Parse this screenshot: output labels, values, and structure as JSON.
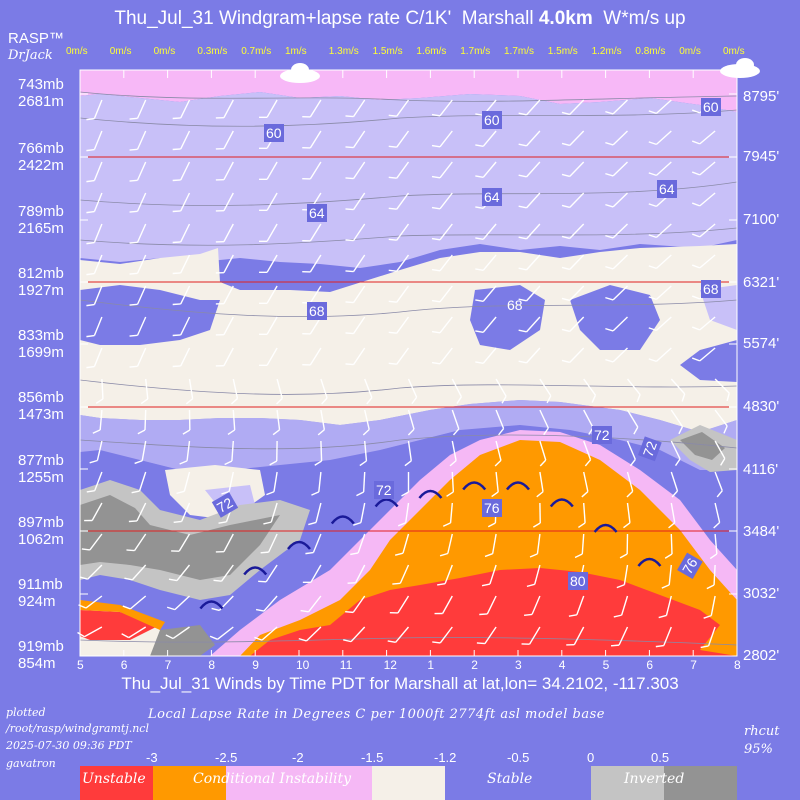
{
  "header": {
    "title_prefix": "Thu_Jul_31 Windgram+lapse rate C/1K'  Marshall ",
    "title_bold": "4.0km",
    "title_suffix": "  W*m/s up",
    "brand": "RASP™",
    "brand_author": "DrJack"
  },
  "left_axis": [
    {
      "mb": "743mb",
      "m": "2681m"
    },
    {
      "mb": "766mb",
      "m": "2422m"
    },
    {
      "mb": "789mb",
      "m": "2165m"
    },
    {
      "mb": "812mb",
      "m": "1927m"
    },
    {
      "mb": "833mb",
      "m": "1699m"
    },
    {
      "mb": "856mb",
      "m": "1473m"
    },
    {
      "mb": "877mb",
      "m": "1255m"
    },
    {
      "mb": "897mb",
      "m": "1062m"
    },
    {
      "mb": "911mb",
      "m": "924m"
    },
    {
      "mb": "919mb",
      "m": "854m"
    }
  ],
  "right_axis": [
    "8795'",
    "7945'",
    "7100'",
    "6321'",
    "5574'",
    "4830'",
    "4116'",
    "3484'",
    "3032'",
    "2802'"
  ],
  "wstar_labels": [
    "0m/s",
    "0m/s",
    "0m/s",
    "0.3m/s",
    "0.7m/s",
    "1m/s",
    "1.3m/s",
    "1.5m/s",
    "1.6m/s",
    "1.7m/s",
    "1.7m/s",
    "1.5m/s",
    "1.2m/s",
    "0.8m/s",
    "0m/s",
    "0m/s"
  ],
  "hours": [
    "5",
    "6",
    "7",
    "8",
    "9",
    "10",
    "11",
    "12",
    "1",
    "2",
    "3",
    "4",
    "5",
    "6",
    "7",
    "8"
  ],
  "contour_labels": [
    {
      "text": "60"
    },
    {
      "text": "60"
    },
    {
      "text": "60"
    },
    {
      "text": "64"
    },
    {
      "text": "64"
    },
    {
      "text": "64"
    },
    {
      "text": "68"
    },
    {
      "text": "68"
    },
    {
      "text": "68"
    },
    {
      "text": "72"
    },
    {
      "text": "72"
    },
    {
      "text": "72"
    },
    {
      "text": "72"
    },
    {
      "text": "76"
    },
    {
      "text": "76"
    },
    {
      "text": "80"
    }
  ],
  "footer": {
    "subtitle": "Thu_Jul_31 Winds by Time PDT for Marshall at lat,lon= 34.2102, -117.303",
    "legend_title": "Local Lapse Rate in Degrees C per 1000ft  2774ft asl model base",
    "plotted": "plotted",
    "path": "/root/rasp/windgramtj.ncl",
    "timestamp": "2025-07-30 09:36 PDT",
    "host": "gavatron",
    "rhcut": "rhcut",
    "rhcut_value": "95%",
    "legend_ticks": [
      "-3",
      "-2.5",
      "-2",
      "-1.5",
      "-1.2",
      "-0.5",
      "0",
      "0.5"
    ],
    "categories": [
      "Unstable",
      "Conditional Instability",
      "Stable",
      "Inverted"
    ]
  },
  "colors": {
    "background": "#7b7be6",
    "unstable": "#ff3b3b",
    "conditional": "#ff9900",
    "conditional_light": "#f5b8f5",
    "neutral": "#f5f0e8",
    "stable_light": "#c8c0f8",
    "stable": "#7b7be6",
    "inverted_light": "#c4c4c4",
    "inverted": "#939393",
    "top_band": "#f7b8f7"
  },
  "chart_data": {
    "type": "heatmap",
    "title": "Thu_Jul_31 Windgram+lapse rate C/1K'  Marshall 4.0km  W*m/s up",
    "xlabel": "Thu_Jul_31 Winds by Time PDT for Marshall at lat,lon= 34.2102, -117.303",
    "x": [
      "5",
      "6",
      "7",
      "8",
      "9",
      "10",
      "11",
      "12",
      "1",
      "2",
      "3",
      "4",
      "5",
      "6",
      "7",
      "8"
    ],
    "pressure_levels_mb": [
      743,
      766,
      789,
      812,
      833,
      856,
      877,
      897,
      911,
      919
    ],
    "heights_m": [
      2681,
      2422,
      2165,
      1927,
      1699,
      1473,
      1255,
      1062,
      924,
      854
    ],
    "heights_ft": [
      8795,
      7945,
      7100,
      6321,
      5574,
      4830,
      4116,
      3484,
      3032,
      2802
    ],
    "wstar_mps": [
      0,
      0,
      0,
      0.3,
      0.7,
      1,
      1.3,
      1.5,
      1.6,
      1.7,
      1.7,
      1.5,
      1.2,
      0.8,
      0,
      0
    ],
    "temperature_contours_F": [
      60,
      64,
      68,
      72,
      76,
      80
    ],
    "lapse_rate_legend": [
      -3,
      -2.5,
      -2,
      -1.5,
      -1.2,
      -0.5,
      0,
      0.5
    ]
  }
}
